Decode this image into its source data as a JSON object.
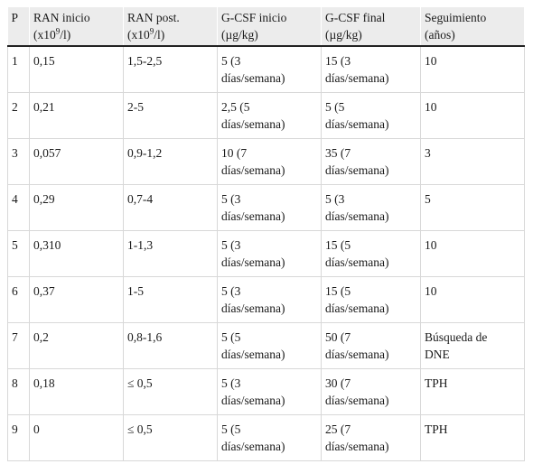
{
  "table": {
    "headers": [
      {
        "line1": "P",
        "line2": "",
        "sup": "",
        "line2_after": ""
      },
      {
        "line1": "RAN inicio",
        "line2": "(x10",
        "sup": "9",
        "line2_after": "/l)"
      },
      {
        "line1": "RAN post.",
        "line2": "(x10",
        "sup": "9",
        "line2_after": "/l)"
      },
      {
        "line1": "G-CSF inicio",
        "line2": "(µg/kg)",
        "sup": "",
        "line2_after": ""
      },
      {
        "line1": "G-CSF final",
        "line2": "(µg/kg)",
        "sup": "",
        "line2_after": ""
      },
      {
        "line1": "Seguimiento",
        "line2": "(años)",
        "sup": "",
        "line2_after": ""
      }
    ],
    "rows": [
      {
        "p": "1",
        "ran_inicio": "0,15",
        "ran_post": "1,5-2,5",
        "gcsf_inicio": [
          "5 (3",
          "días/semana)"
        ],
        "gcsf_final": [
          "15 (3",
          "días/semana)"
        ],
        "seguimiento": [
          "10",
          ""
        ]
      },
      {
        "p": "2",
        "ran_inicio": "0,21",
        "ran_post": "2-5",
        "gcsf_inicio": [
          "2,5 (5",
          "días/semana)"
        ],
        "gcsf_final": [
          "5 (5",
          "días/semana)"
        ],
        "seguimiento": [
          "10",
          ""
        ]
      },
      {
        "p": "3",
        "ran_inicio": "0,057",
        "ran_post": "0,9-1,2",
        "gcsf_inicio": [
          "10 (7",
          "días/semana)"
        ],
        "gcsf_final": [
          "35 (7",
          "días/semana)"
        ],
        "seguimiento": [
          "3",
          ""
        ]
      },
      {
        "p": "4",
        "ran_inicio": "0,29",
        "ran_post": "0,7-4",
        "gcsf_inicio": [
          "5 (3",
          "días/semana)"
        ],
        "gcsf_final": [
          "5 (3",
          "días/semana)"
        ],
        "seguimiento": [
          "5",
          ""
        ]
      },
      {
        "p": "5",
        "ran_inicio": "0,310",
        "ran_post": "1-1,3",
        "gcsf_inicio": [
          "5 (3",
          "días/semana)"
        ],
        "gcsf_final": [
          "15 (5",
          "días/semana)"
        ],
        "seguimiento": [
          "10",
          ""
        ]
      },
      {
        "p": "6",
        "ran_inicio": "0,37",
        "ran_post": "1-5",
        "gcsf_inicio": [
          "5 (3",
          "días/semana)"
        ],
        "gcsf_final": [
          "15 (5",
          "días/semana)"
        ],
        "seguimiento": [
          "10",
          ""
        ]
      },
      {
        "p": "7",
        "ran_inicio": "0,2",
        "ran_post": "0,8-1,6",
        "gcsf_inicio": [
          "5 (5",
          "días/semana)"
        ],
        "gcsf_final": [
          "50 (7",
          "días/semana)"
        ],
        "seguimiento": [
          "Búsqueda de",
          "DNE"
        ]
      },
      {
        "p": "8",
        "ran_inicio": "0,18",
        "ran_post": "≤ 0,5",
        "gcsf_inicio": [
          "5 (3",
          "días/semana)"
        ],
        "gcsf_final": [
          "30 (7",
          "días/semana)"
        ],
        "seguimiento": [
          "TPH",
          ""
        ]
      },
      {
        "p": "9",
        "ran_inicio": "0",
        "ran_post": "≤ 0,5",
        "gcsf_inicio": [
          "5 (5",
          "días/semana)"
        ],
        "gcsf_final": [
          "25 (7",
          "días/semana)"
        ],
        "seguimiento": [
          "TPH",
          ""
        ]
      }
    ]
  }
}
